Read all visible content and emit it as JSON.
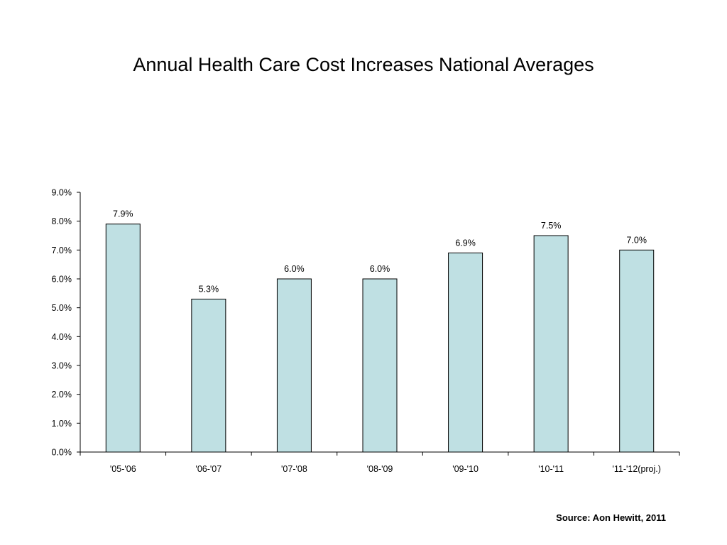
{
  "title": "Annual Health Care Cost Increases National Averages",
  "source": "Source: Aon Hewitt, 2011",
  "colors": {
    "bar_fill": "#bfe0e3",
    "bar_stroke": "#000000",
    "axis": "#000000"
  },
  "chart_data": {
    "type": "bar",
    "categories": [
      "'05-'06",
      "'06-'07",
      "'07-'08",
      "'08-'09",
      "'09-'10",
      "'10-'11",
      "'11-'12(proj.)"
    ],
    "values": [
      7.9,
      5.3,
      6.0,
      6.0,
      6.9,
      7.5,
      7.0
    ],
    "data_labels": [
      "7.9%",
      "5.3%",
      "6.0%",
      "6.0%",
      "6.9%",
      "7.5%",
      "7.0%"
    ],
    "ylim": [
      0,
      9
    ],
    "yticks": [
      0,
      1,
      2,
      3,
      4,
      5,
      6,
      7,
      8,
      9
    ],
    "ytick_labels": [
      "0.0%",
      "1.0%",
      "2.0%",
      "3.0%",
      "4.0%",
      "5.0%",
      "6.0%",
      "7.0%",
      "8.0%",
      "9.0%"
    ],
    "grid": false,
    "legend": "none",
    "xlabel": "",
    "ylabel": ""
  }
}
